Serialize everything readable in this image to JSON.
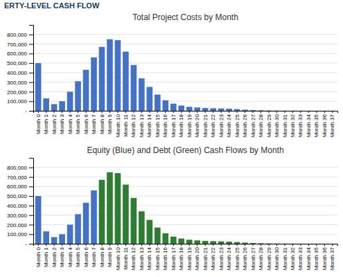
{
  "title": "ERTY-LEVEL CASH FLOW",
  "chart_data": [
    {
      "type": "bar",
      "title": "Total Project Costs by Month",
      "categories": [
        "Month 0",
        "Month 1",
        "Month 2",
        "Month 3",
        "Month 4",
        "Month 5",
        "Month 6",
        "Month 7",
        "Month 8",
        "Month 9",
        "Month 10",
        "Month 11",
        "Month 12",
        "Month 13",
        "Month 14",
        "Month 15",
        "Month 16",
        "Month 17",
        "Month 18",
        "Month 19",
        "Month 20",
        "Month 21",
        "Month 22",
        "Month 23",
        "Month 24",
        "Month 25",
        "Month 26",
        "Month 27",
        "Month 28",
        "Month 29",
        "Month 30",
        "Month 31",
        "Month 32",
        "Month 33",
        "Month 34",
        "Month 35",
        "Month 36",
        "Month 37"
      ],
      "values": [
        500000,
        130000,
        70000,
        100000,
        200000,
        310000,
        430000,
        560000,
        670000,
        750000,
        740000,
        620000,
        480000,
        340000,
        250000,
        170000,
        110000,
        75000,
        55000,
        42000,
        35000,
        30000,
        27000,
        25000,
        22000,
        18000,
        12000,
        8000,
        5000,
        3000,
        2000,
        1500,
        1000,
        800,
        600,
        400,
        200,
        100
      ],
      "color": "#4472c4",
      "ylim": [
        0,
        900000
      ],
      "yticks": [
        {
          "value": 0,
          "label": "-"
        },
        {
          "value": 100000,
          "label": "100,000"
        },
        {
          "value": 200000,
          "label": "200,000"
        },
        {
          "value": 300000,
          "label": "300,000"
        },
        {
          "value": 400000,
          "label": "400,000"
        },
        {
          "value": 500000,
          "label": "500,000"
        },
        {
          "value": 600000,
          "label": "600,000"
        },
        {
          "value": 700000,
          "label": "700,000"
        },
        {
          "value": 800000,
          "label": "800,000"
        }
      ],
      "grid": true
    },
    {
      "type": "bar",
      "title": "Equity (Blue) and Debt (Green) Cash Flows by Month",
      "categories": [
        "Month 0",
        "Month 1",
        "Month 2",
        "Month 3",
        "Month 4",
        "Month 5",
        "Month 6",
        "Month 7",
        "Month 8",
        "Month 9",
        "Month 10",
        "Month 11",
        "Month 12",
        "Month 13",
        "Month 14",
        "Month 15",
        "Month 16",
        "Month 17",
        "Month 18",
        "Month 19",
        "Month 20",
        "Month 21",
        "Month 22",
        "Month 23",
        "Month 24",
        "Month 25",
        "Month 26",
        "Month 27",
        "Month 28",
        "Month 29",
        "Month 30",
        "Month 31",
        "Month 32",
        "Month 33",
        "Month 34",
        "Month 35",
        "Month 36",
        "Month 37"
      ],
      "series": [
        {
          "color": "#4472c4",
          "values": [
            500000,
            130000,
            70000,
            100000,
            200000,
            310000,
            430000,
            560000,
            0,
            0,
            0,
            0,
            0,
            0,
            0,
            0,
            0,
            0,
            0,
            0,
            0,
            0,
            0,
            0,
            0,
            0,
            0,
            0,
            0,
            0,
            0,
            0,
            0,
            0,
            0,
            0,
            0,
            0
          ]
        },
        {
          "color": "#2e7d32",
          "values": [
            0,
            0,
            0,
            0,
            0,
            0,
            0,
            0,
            670000,
            750000,
            740000,
            620000,
            480000,
            340000,
            250000,
            170000,
            110000,
            75000,
            55000,
            42000,
            35000,
            30000,
            27000,
            25000,
            22000,
            18000,
            12000,
            8000,
            5000,
            3000,
            2000,
            1500,
            1000,
            800,
            600,
            400,
            200,
            100
          ]
        }
      ],
      "ylim": [
        0,
        900000
      ],
      "yticks": [
        {
          "value": 0,
          "label": "-"
        },
        {
          "value": 100000,
          "label": "100,000"
        },
        {
          "value": 200000,
          "label": "200,000"
        },
        {
          "value": 300000,
          "label": "300,000"
        },
        {
          "value": 400000,
          "label": "400,000"
        },
        {
          "value": 500000,
          "label": "500,000"
        },
        {
          "value": 600000,
          "label": "600,000"
        },
        {
          "value": 700000,
          "label": "700,000"
        },
        {
          "value": 800000,
          "label": "800,000"
        }
      ],
      "grid": true
    }
  ]
}
